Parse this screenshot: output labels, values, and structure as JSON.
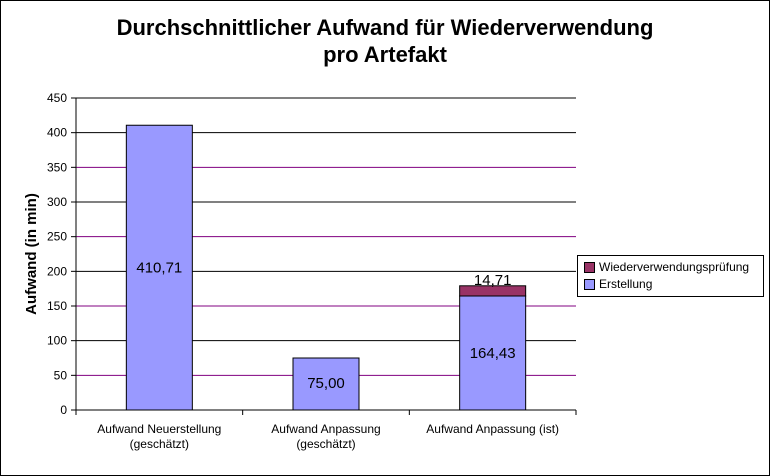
{
  "chart_data": {
    "type": "bar",
    "stacked": true,
    "title": "Durchschnittlicher Aufwand für Wiederverwendung pro Artefakt",
    "title_lines": [
      "Durchschnittlicher Aufwand für Wiederverwendung",
      "pro Artefakt"
    ],
    "ylabel": "Aufwand (in min)",
    "ylim": [
      0,
      450
    ],
    "yticks": [
      0,
      50,
      100,
      150,
      200,
      250,
      300,
      350,
      400,
      450
    ],
    "grid": true,
    "legend_position": "right",
    "categories": [
      [
        "Aufwand Neuerstellung",
        "(geschätzt)"
      ],
      [
        "Aufwand Anpassung",
        "(geschätzt)"
      ],
      [
        "Aufwand Anpassung (ist)"
      ]
    ],
    "series": [
      {
        "name": "Erstellung",
        "color": "#9999ff",
        "values": [
          410.71,
          75.0,
          164.43
        ],
        "labels": [
          "410,71",
          "75,00",
          "164,43"
        ]
      },
      {
        "name": "Wiederverwendungsprüfung",
        "color": "#993366",
        "values": [
          0,
          0,
          14.71
        ],
        "labels": [
          "",
          "",
          "14,71"
        ]
      }
    ],
    "legend_order": [
      "Wiederverwendungsprüfung",
      "Erstellung"
    ],
    "colors": {
      "gridline": "#800080",
      "axis": "#000000"
    }
  }
}
